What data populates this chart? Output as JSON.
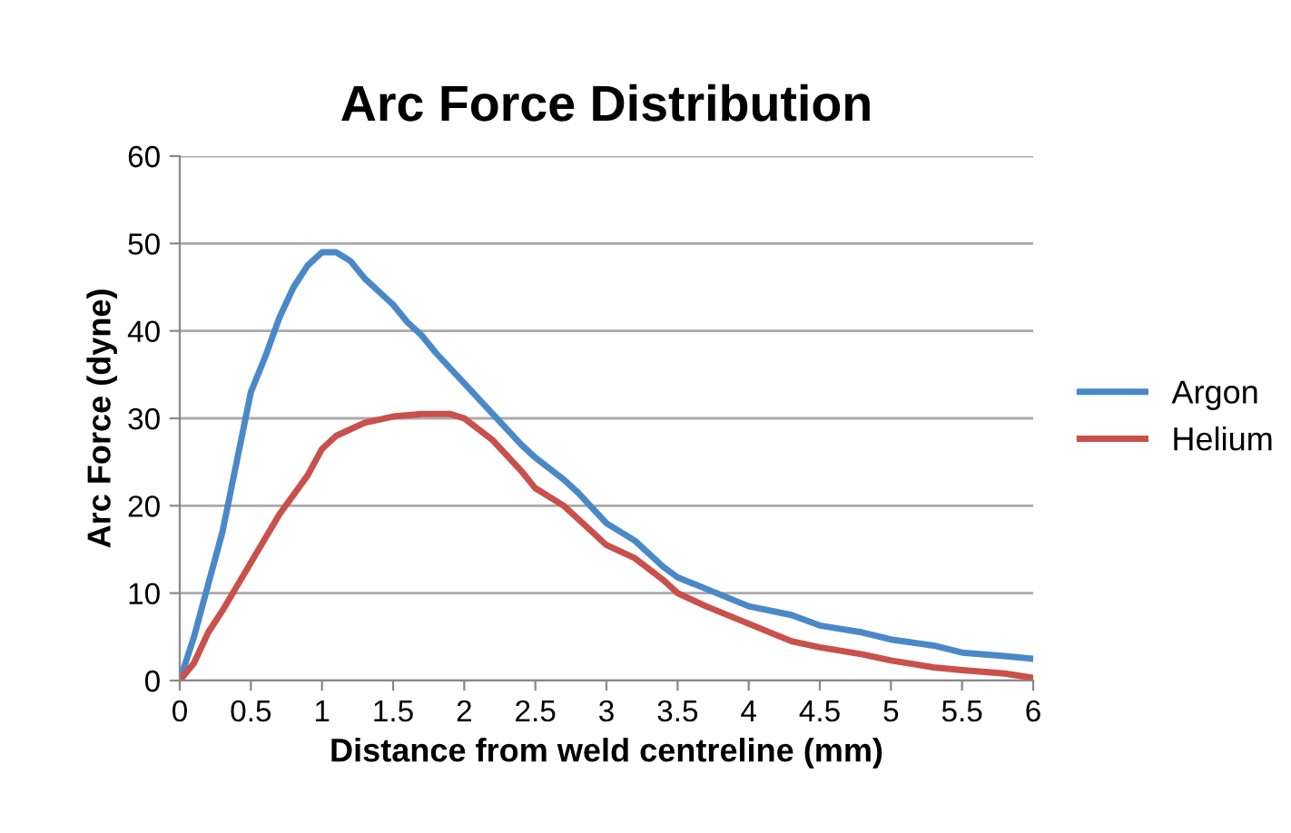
{
  "chart_data": {
    "type": "line",
    "title": "Arc Force Distribution",
    "xlabel": "Distance from weld centreline (mm)",
    "ylabel": "Arc Force (dyne)",
    "xlim": [
      0,
      6
    ],
    "xticks": [
      0,
      0.5,
      1,
      1.5,
      2,
      2.5,
      3,
      3.5,
      4,
      4.5,
      5,
      5.5,
      6
    ],
    "ylim": [
      0,
      60
    ],
    "yticks": [
      0,
      10,
      20,
      30,
      40,
      50,
      60
    ],
    "grid": "y",
    "legend": "right",
    "marker": "none",
    "line_style": "solid",
    "series": [
      {
        "name": "Argon",
        "color": "#4a89c8",
        "x": [
          0,
          0.1,
          0.2,
          0.3,
          0.4,
          0.5,
          0.6,
          0.7,
          0.8,
          0.9,
          1.0,
          1.1,
          1.2,
          1.3,
          1.4,
          1.5,
          1.6,
          1.7,
          1.8,
          2.0,
          2.2,
          2.4,
          2.5,
          2.7,
          2.8,
          3.0,
          3.2,
          3.4,
          3.5,
          3.7,
          4.0,
          4.3,
          4.5,
          4.8,
          5.0,
          5.3,
          5.5,
          5.8,
          6.0
        ],
        "values": [
          0,
          5,
          11,
          17,
          25,
          33,
          37,
          41.5,
          45,
          47.5,
          49,
          49,
          48,
          46,
          44.5,
          43,
          41,
          39.5,
          37.5,
          34,
          30.5,
          27,
          25.5,
          23,
          21.5,
          18,
          16,
          13,
          11.8,
          10.5,
          8.5,
          7.5,
          6.3,
          5.5,
          4.7,
          4,
          3.2,
          2.8,
          2.5
        ]
      },
      {
        "name": "Helium",
        "color": "#c9504b",
        "x": [
          0,
          0.1,
          0.2,
          0.3,
          0.5,
          0.7,
          0.9,
          1.0,
          1.1,
          1.3,
          1.5,
          1.7,
          1.9,
          2.0,
          2.2,
          2.4,
          2.5,
          2.7,
          2.8,
          3.0,
          3.2,
          3.4,
          3.5,
          3.7,
          4.0,
          4.3,
          4.5,
          4.8,
          5.0,
          5.3,
          5.5,
          5.8,
          6.0
        ],
        "values": [
          0,
          2,
          5.5,
          8,
          13.5,
          19,
          23.5,
          26.5,
          28,
          29.5,
          30.2,
          30.5,
          30.5,
          30,
          27.5,
          24,
          22,
          20,
          18.5,
          15.5,
          14,
          11.5,
          10,
          8.5,
          6.5,
          4.5,
          3.8,
          3,
          2.3,
          1.5,
          1.2,
          0.8,
          0.3
        ]
      }
    ]
  }
}
